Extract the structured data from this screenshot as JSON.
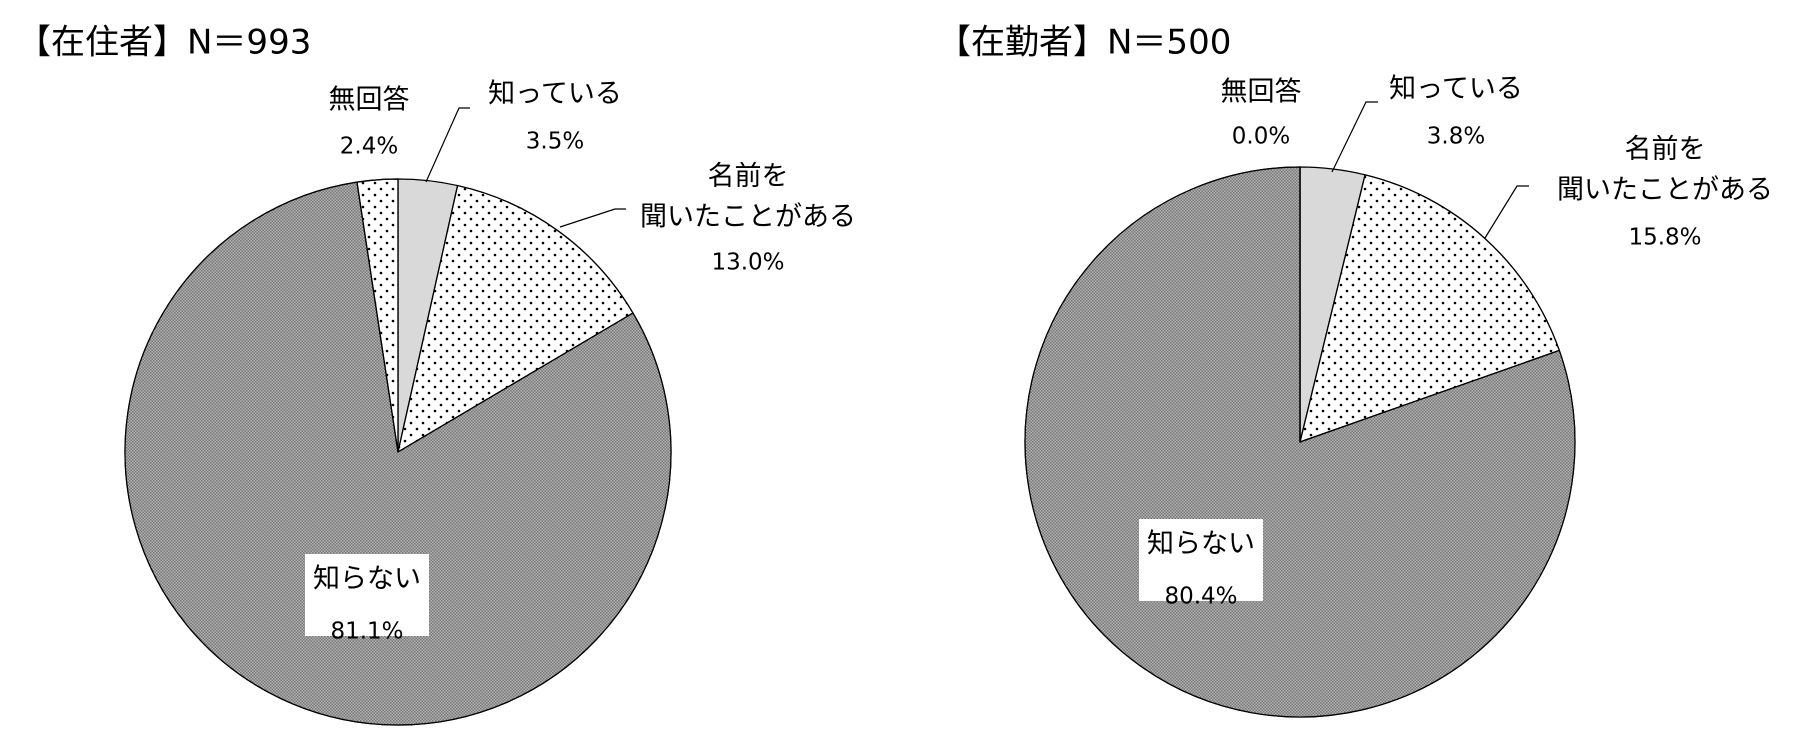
{
  "chart_data": [
    {
      "type": "pie",
      "title": "【在住者】N＝993",
      "categories": [
        "知っている",
        "名前を\n聞いたことがある",
        "知らない",
        "無回答"
      ],
      "values": [
        3.5,
        13.0,
        81.1,
        2.4
      ],
      "value_labels": [
        "3.5%",
        "13.0%",
        "81.1%",
        "2.4%"
      ],
      "colors": [
        "#d9d9d9",
        "#ffffff",
        "#b3b3b3",
        "#ffffff"
      ]
    },
    {
      "type": "pie",
      "title": "【在勤者】N＝500",
      "categories": [
        "知っている",
        "名前を\n聞いたことがある",
        "知らない",
        "無回答"
      ],
      "values": [
        3.8,
        15.8,
        80.4,
        0.0
      ],
      "value_labels": [
        "3.8%",
        "15.8%",
        "80.4%",
        "0.0%"
      ],
      "colors": [
        "#d9d9d9",
        "#ffffff",
        "#b3b3b3",
        "#ffffff"
      ]
    }
  ]
}
